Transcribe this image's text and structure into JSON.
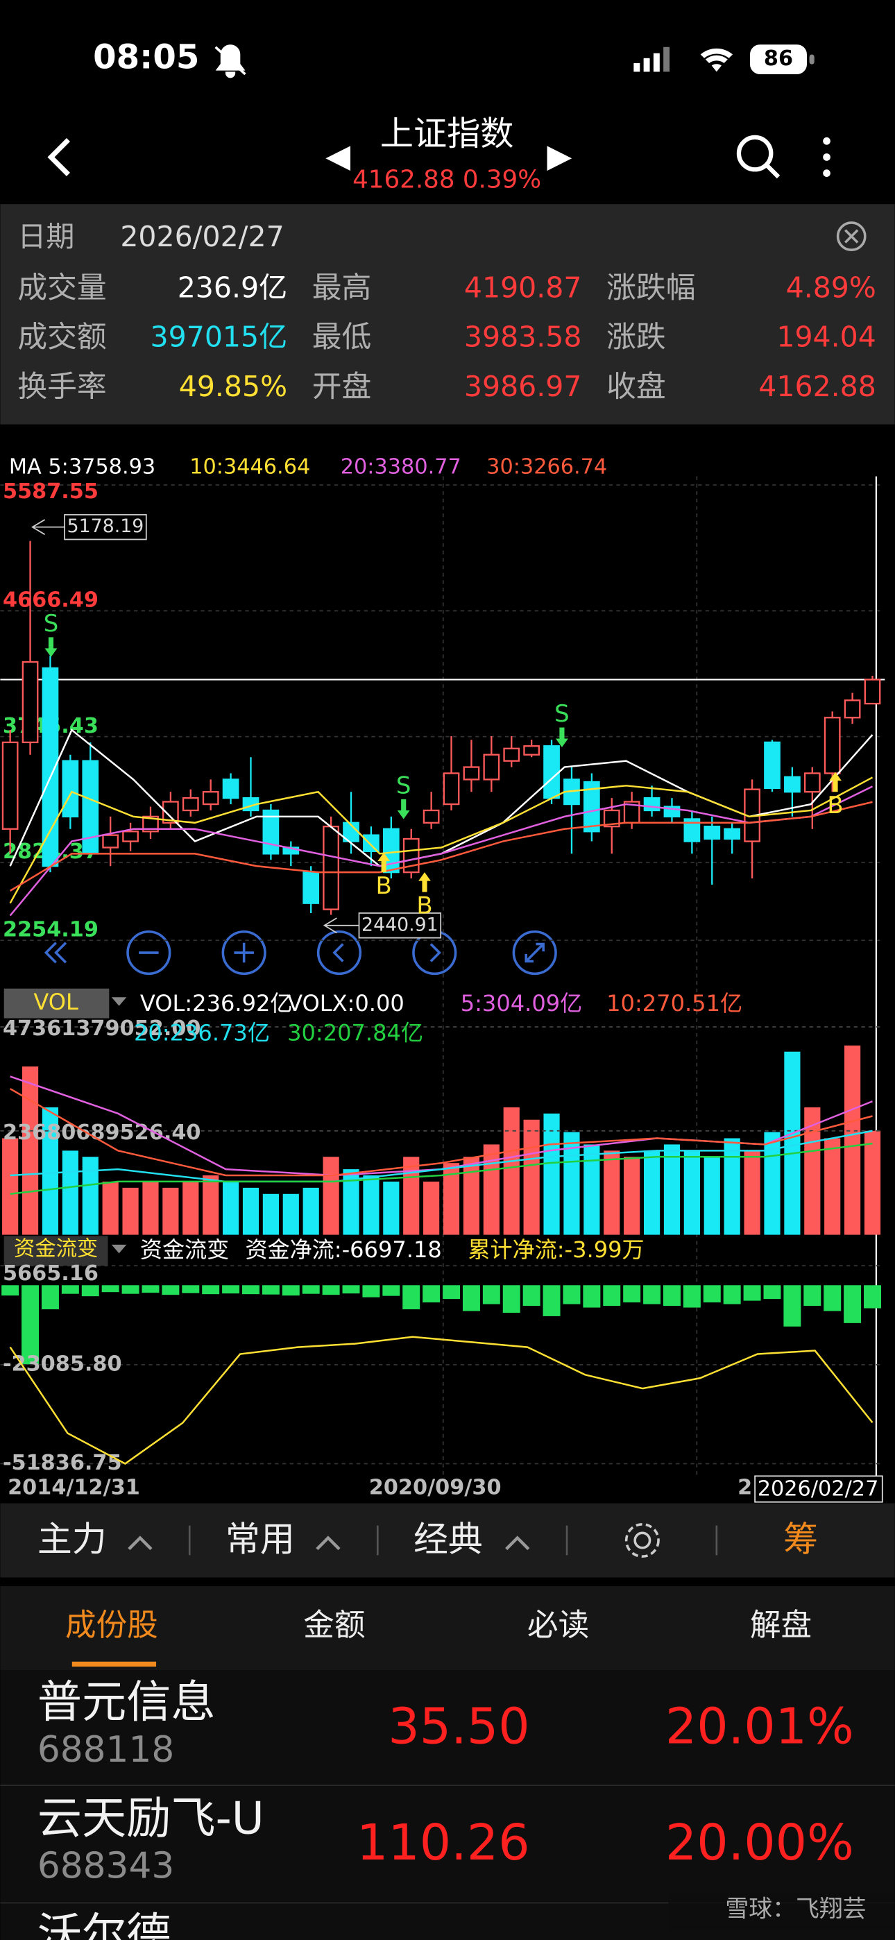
{
  "status_bar": {
    "time": "08:05",
    "battery": "86"
  },
  "header": {
    "title": "上证指数",
    "quote": "4162.88 0.39%"
  },
  "info": {
    "date_label": "日期",
    "date": "2026/02/27",
    "rows": [
      [
        {
          "label": "成交量",
          "value": "236.9亿",
          "color": "#ffffff"
        },
        {
          "label": "最高",
          "value": "4190.87",
          "color": "#ff3b3b"
        },
        {
          "label": "涨跌幅",
          "value": "4.89%",
          "color": "#ff3b3b"
        }
      ],
      [
        {
          "label": "成交额",
          "value": "397015亿",
          "color": "#22e0f0"
        },
        {
          "label": "最低",
          "value": "3983.58",
          "color": "#ff3b3b"
        },
        {
          "label": "涨跌",
          "value": "194.04",
          "color": "#ff3b3b"
        }
      ],
      [
        {
          "label": "换手率",
          "value": "49.85%",
          "color": "#ffe033"
        },
        {
          "label": "开盘",
          "value": "3986.97",
          "color": "#ff3b3b"
        },
        {
          "label": "收盘",
          "value": "4162.88",
          "color": "#ff3b3b"
        }
      ]
    ]
  },
  "kline": {
    "ylim": [
      2254.19,
      5587.55
    ],
    "yticks": [
      5587.55,
      4666.49,
      3745.43,
      2824.37,
      2254.19
    ],
    "current": 4162.88,
    "up_color": "#ff5a5a",
    "down_color": "#19e8f5",
    "candles": [
      [
        3069.4,
        3794.0,
        2888.3,
        3703.5
      ],
      [
        3703.5,
        5178.19,
        3612.9,
        4292.3
      ],
      [
        4247.0,
        4337.6,
        2752.4,
        2797.7
      ],
      [
        3567.6,
        3612.9,
        3069.4,
        3160.0
      ],
      [
        3567.6,
        3703.5,
        2888.3,
        2888.3
      ],
      [
        2933.5,
        3160.0,
        2797.7,
        3024.1
      ],
      [
        2978.8,
        3114.7,
        2906.4,
        3051.3
      ],
      [
        3051.3,
        3232.5,
        2996.9,
        3160.0
      ],
      [
        3114.7,
        3341.2,
        3069.4,
        3268.7
      ],
      [
        3205.3,
        3359.3,
        3160.0,
        3295.9
      ],
      [
        3250.6,
        3431.7,
        3205.3,
        3341.2
      ],
      [
        3431.7,
        3477.0,
        3250.6,
        3295.9
      ],
      [
        3295.9,
        3594.8,
        3160.0,
        3205.3
      ],
      [
        3205.3,
        3250.6,
        2843.0,
        2888.3
      ],
      [
        2933.5,
        2978.8,
        2797.7,
        2888.3
      ],
      [
        2752.4,
        2797.7,
        2453.4,
        2526.0
      ],
      [
        2480.7,
        3160.0,
        2440.91,
        3087.5
      ],
      [
        3114.7,
        3341.2,
        2888.3,
        2978.8
      ],
      [
        3024.1,
        3087.5,
        2797.7,
        2906.4
      ],
      [
        3069.4,
        3160.0,
        2707.1,
        2752.4
      ],
      [
        2752.4,
        3069.4,
        2707.1,
        2996.9
      ],
      [
        3114.7,
        3341.2,
        3069.4,
        3205.3
      ],
      [
        3250.6,
        3748.8,
        3205.3,
        3477.0
      ],
      [
        3431.7,
        3721.6,
        3341.2,
        3522.3
      ],
      [
        3431.7,
        3748.8,
        3341.2,
        3612.9
      ],
      [
        3567.6,
        3748.8,
        3522.3,
        3658.2
      ],
      [
        3612.9,
        3721.6,
        3594.8,
        3676.3
      ],
      [
        3676.3,
        3721.6,
        3250.6,
        3295.9
      ],
      [
        3431.7,
        3522.3,
        2888.3,
        3250.6
      ],
      [
        3413.6,
        3477.0,
        2978.8,
        3051.3
      ],
      [
        3087.5,
        3295.9,
        2888.3,
        3205.3
      ],
      [
        3114.7,
        3341.2,
        3069.4,
        3268.7
      ],
      [
        3295.9,
        3386.4,
        3160.0,
        3205.3
      ],
      [
        3232.5,
        3295.9,
        3114.7,
        3160.0
      ],
      [
        3141.9,
        3205.3,
        2888.3,
        2978.8
      ],
      [
        3087.5,
        3160.0,
        2661.8,
        2996.9
      ],
      [
        3069.4,
        3114.7,
        2888.3,
        2996.9
      ],
      [
        2978.8,
        3431.7,
        2707.1,
        3359.3
      ],
      [
        3703.5,
        3721.6,
        3341.2,
        3368.3
      ],
      [
        3449.8,
        3522.3,
        3160.0,
        3341.2
      ],
      [
        3341.2,
        3522.3,
        3069.4,
        3477.0
      ],
      [
        3477.0,
        3929.9,
        3341.2,
        3884.6
      ],
      [
        3884.6,
        4065.8,
        3839.3,
        4011.2
      ],
      [
        3986.97,
        4190.87,
        3983.58,
        4162.88
      ]
    ],
    "ma": [
      {
        "label": "MA 5:3758.93",
        "color": "#ffffff",
        "values": [
          2797.7,
          3794.0,
          3431.7,
          2978.8,
          3160.0,
          3160.0,
          2797.7,
          2888.3,
          3114.7,
          3522.3,
          3567.6,
          3341.2,
          3160.0,
          3250.6,
          3758.93
        ]
      },
      {
        "label": "10:3446.64",
        "color": "#ffe033",
        "values": [
          2526.0,
          3341.2,
          3160.0,
          3114.7,
          3250.6,
          3341.2,
          2888.3,
          2933.5,
          3114.7,
          3341.2,
          3386.4,
          3341.2,
          3160.0,
          3205.3,
          3446.64
        ]
      },
      {
        "label": "20:3380.77",
        "color": "#e060e0",
        "values": [
          2435.3,
          2978.8,
          3069.4,
          3069.4,
          2978.8,
          2888.3,
          2797.7,
          2888.3,
          3024.1,
          3160.0,
          3250.6,
          3205.3,
          3114.7,
          3160.0,
          3380.77
        ]
      },
      {
        "label": "30:3266.74",
        "color": "#ff5a3c",
        "values": [
          2616.5,
          2888.3,
          2888.3,
          2888.3,
          2797.7,
          2752.4,
          2752.4,
          2843.0,
          2978.8,
          3069.4,
          3114.7,
          3114.7,
          3114.7,
          3160.0,
          3266.74
        ]
      }
    ],
    "annotations": [
      5178.19,
      2440.91
    ],
    "signals": [
      "S",
      "S",
      "S",
      "B",
      "B",
      "B"
    ]
  },
  "volume": {
    "label": "VOL",
    "legend": [
      "VOL:236.92亿",
      "VOLX:0.00"
    ],
    "ylim": [
      0,
      47361379052
    ],
    "yticks": [
      {
        "value": 47361379052,
        "label": "47361379052.00"
      },
      {
        "value": 23680689526.4,
        "label": "23680689526.40"
      }
    ],
    "values": [
      21990000000,
      38340000000,
      29040000000,
      19170000000,
      17760000000,
      12120000000,
      10710000000,
      12120000000,
      10710000000,
      12120000000,
      13530000000,
      12120000000,
      10710000000,
      9300000000,
      9300000000,
      10710000000,
      17760000000,
      14940000000,
      13530000000,
      12120000000,
      17760000000,
      12120000000,
      16350000000,
      17760000000,
      20580000000,
      29040000000,
      26220000000,
      27630000000,
      23400000000,
      20580000000,
      19170000000,
      17760000000,
      19170000000,
      20580000000,
      19170000000,
      17760000000,
      21990000000,
      19170000000,
      23400000000,
      41720000000,
      29040000000,
      21990000000,
      43130000000,
      23692000000
    ],
    "ma": [
      {
        "label": "5:304.09亿",
        "color": "#e060e0",
        "values": [
          36080000000,
          27630000000,
          14940000000,
          13530000000,
          14940000000,
          19170000000,
          21990000000,
          20580000000,
          30409000000
        ]
      },
      {
        "label": "10:270.51亿",
        "color": "#ff5a3c",
        "values": [
          33270000000,
          19170000000,
          13530000000,
          13530000000,
          16350000000,
          20580000000,
          21990000000,
          20580000000,
          27051000000
        ]
      },
      {
        "label": "20:236.73亿",
        "color": "#22e0f0",
        "values": [
          13530000000,
          14940000000,
          12120000000,
          12120000000,
          14940000000,
          17760000000,
          19170000000,
          19170000000,
          23673000000
        ]
      },
      {
        "label": "30:207.84亿",
        "color": "#22d040",
        "values": [
          9300000000,
          12120000000,
          12120000000,
          12120000000,
          13530000000,
          16350000000,
          17760000000,
          17760000000,
          20784000000
        ]
      }
    ]
  },
  "fund": {
    "label": "资金流变",
    "legend": [
      "资金流变",
      "资金净流:-6697.18",
      "累计净流:-3.99万"
    ],
    "ylim": [
      -51836.75,
      5665.16
    ],
    "yticks": [
      5665.16,
      {
        "value": -23085.8,
        "label": "-23085.80"
      },
      -51836.75
    ],
    "color": "#22e05a",
    "line_color": "#ffe033",
    "values": [
      -3000,
      -23000,
      -7000,
      -2500,
      -3200,
      -2000,
      -2500,
      -2200,
      -2800,
      -2300,
      -2600,
      -2400,
      -2600,
      -2700,
      -3000,
      -2500,
      -2800,
      -2400,
      -3500,
      -3100,
      -7000,
      -5000,
      -4000,
      -7500,
      -5500,
      -8000,
      -6000,
      -9000,
      -5500,
      -6500,
      -6000,
      -5000,
      -5500,
      -6000,
      -6500,
      -5000,
      -5500,
      -4500,
      -4000,
      -12000,
      -6000,
      -7500,
      -11000,
      -6697.18
    ],
    "cumulative": [
      -18000,
      -43000,
      -51836.75,
      -40000,
      -20000,
      -18000,
      -17000,
      -15000,
      -16500,
      -18000,
      -26000,
      -30000,
      -27000,
      -20000,
      -19000,
      -39900
    ]
  },
  "dates": [
    "2014/12/31",
    "2020/09/30",
    "2",
    "2026/02/27"
  ],
  "tabs": [
    "主力",
    "常用",
    "经典",
    "筹"
  ],
  "subtabs": [
    "成份股",
    "金额",
    "必读",
    "解盘"
  ],
  "stocks": [
    {
      "name": "普元信息",
      "code": "688118",
      "price": "35.50",
      "change": "20.01%"
    },
    {
      "name": "云天励飞-U",
      "code": "688343",
      "price": "110.26",
      "change": "20.00%"
    },
    {
      "name": "沃尔德"
    }
  ],
  "watermark": "雪球：飞翔芸"
}
